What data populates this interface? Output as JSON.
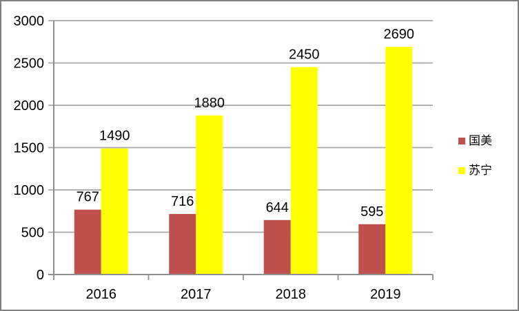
{
  "chart_data": {
    "type": "bar",
    "categories": [
      "2016",
      "2017",
      "2018",
      "2019"
    ],
    "series": [
      {
        "key": "guomei",
        "name": "国美",
        "color": "#C0504D",
        "values": [
          767,
          716,
          644,
          595
        ]
      },
      {
        "key": "suning",
        "name": "苏宁",
        "color": "#FFFF00",
        "values": [
          1490,
          1880,
          2450,
          2690
        ]
      }
    ],
    "ylim": [
      0,
      3000
    ],
    "y_ticks": [
      0,
      500,
      1000,
      1500,
      2000,
      2500,
      3000
    ],
    "grid": true,
    "data_labels": true,
    "legend_position": "right"
  },
  "style": {
    "grid_color": "#A6A6A6",
    "axis_color": "#8F8F8F",
    "text_color": "#000000",
    "frame_border_color": "#7F7F7F",
    "background": "#FFFFFF"
  }
}
